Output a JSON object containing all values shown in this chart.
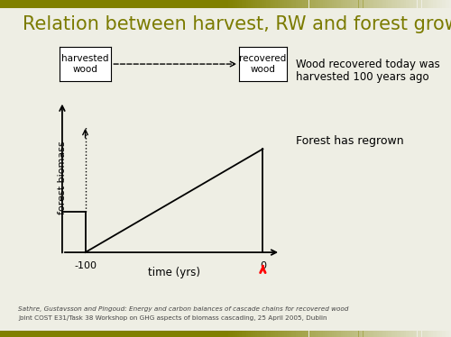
{
  "title": "Relation between harvest, RW and forest growth",
  "title_color": "#7B7B00",
  "title_fontsize": 15,
  "bg_color": "#EEEEE4",
  "bg_white": "#FFFFFF",
  "ylabel": "forest biomass",
  "xlabel": "time (yrs)",
  "footnote_line1": "Sathre, Gustavsson and Pingoud: Energy and carbon balances of cascade chains for recovered wood",
  "footnote_line2": "Joint COST E31/Task 38 Workshop on GHG aspects of biomass cascading, 25 April 2005, Dublin",
  "annotation_right1": "Wood recovered today was",
  "annotation_right2": "harvested 100 years ago",
  "annotation_right3": "Forest has regrown",
  "box1_text": "harvested\nwood",
  "box2_text": "recovered\nwood",
  "olive_bar_color": "#808000",
  "top_bar_height": 0.025,
  "bot_bar_height": 0.018
}
